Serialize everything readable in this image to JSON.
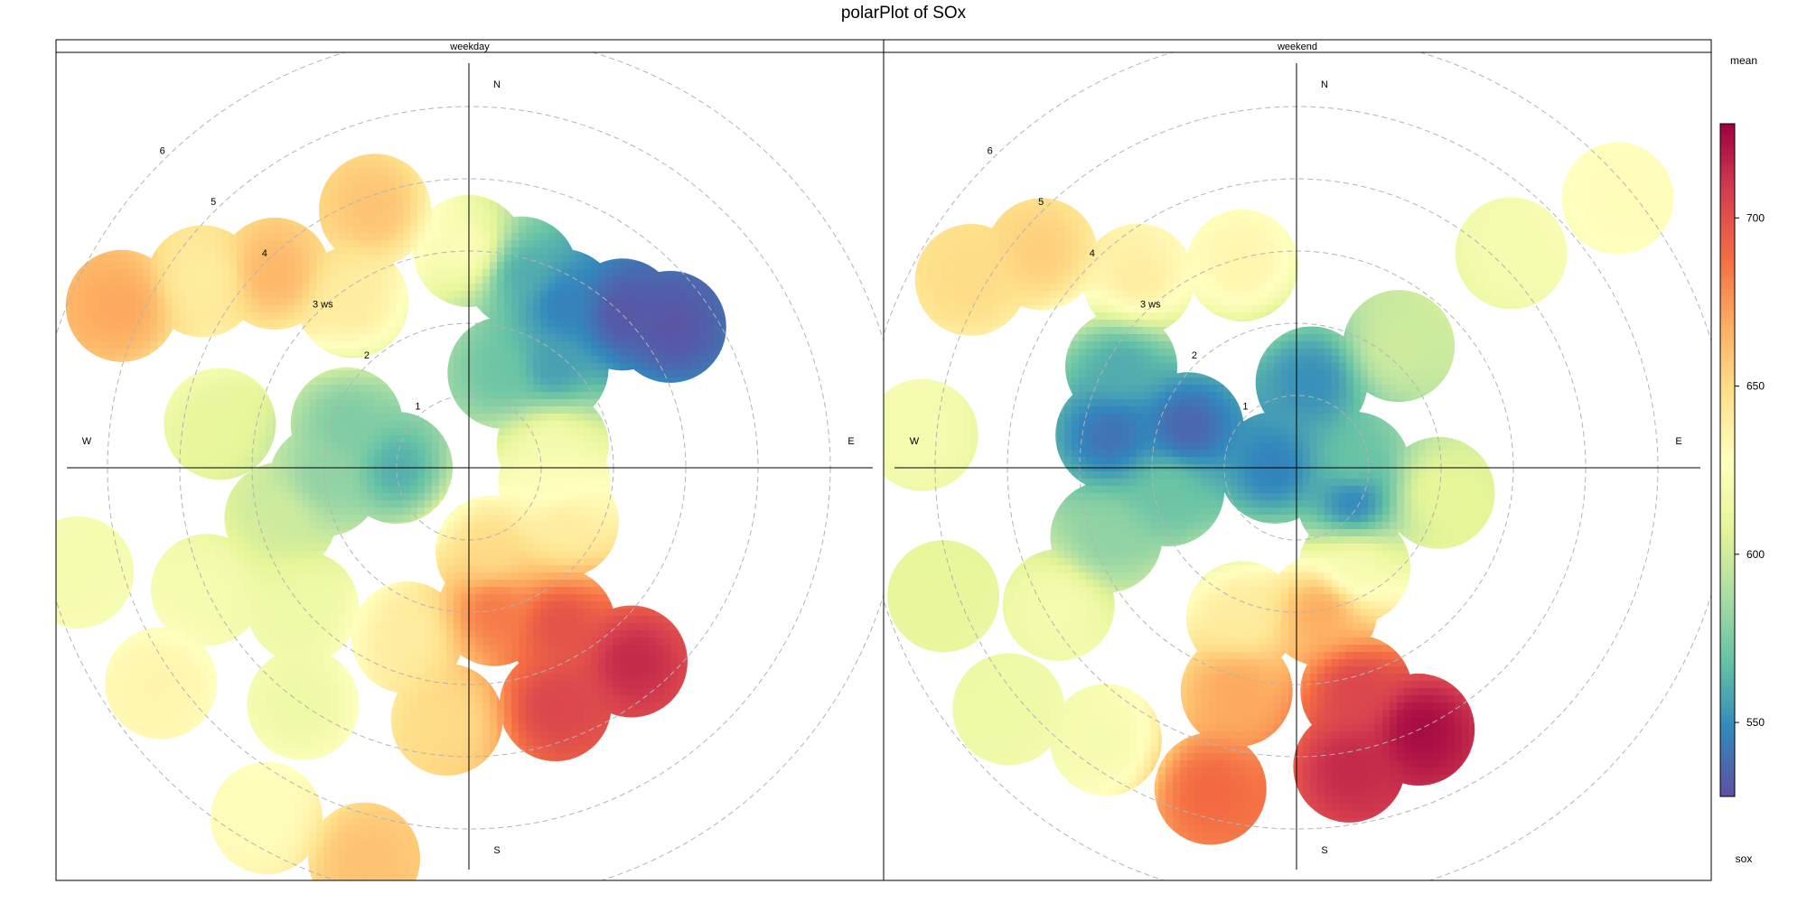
{
  "chart_data": {
    "type": "polar",
    "title": "polarPlot of SOx",
    "panels": [
      {
        "name": "weekday",
        "compass": [
          "N",
          "E",
          "S",
          "W"
        ],
        "ring_labels": [
          "1",
          "2",
          "3 ws",
          "4",
          "5",
          "6"
        ],
        "ring_values": [
          1,
          2,
          3,
          4,
          5,
          6
        ],
        "blobs": [
          {
            "theta": 0,
            "r": 3.0,
            "value": 625
          },
          {
            "theta": 15,
            "r": 2.8,
            "value": 560
          },
          {
            "theta": 30,
            "r": 2.6,
            "value": 545
          },
          {
            "theta": 45,
            "r": 3.0,
            "value": 530
          },
          {
            "theta": 55,
            "r": 3.4,
            "value": 530
          },
          {
            "theta": 40,
            "r": 1.8,
            "value": 555
          },
          {
            "theta": 20,
            "r": 1.4,
            "value": 570
          },
          {
            "theta": 150,
            "r": 2.5,
            "value": 700
          },
          {
            "theta": 160,
            "r": 3.5,
            "value": 705
          },
          {
            "theta": 140,
            "r": 3.5,
            "value": 715
          },
          {
            "theta": 170,
            "r": 2.0,
            "value": 685
          },
          {
            "theta": 165,
            "r": 1.2,
            "value": 650
          },
          {
            "theta": 270,
            "r": 1.0,
            "value": 560
          },
          {
            "theta": 265,
            "r": 2.0,
            "value": 580
          },
          {
            "theta": 255,
            "r": 2.7,
            "value": 600
          },
          {
            "theta": 290,
            "r": 1.8,
            "value": 575
          },
          {
            "theta": 280,
            "r": 3.5,
            "value": 610
          },
          {
            "theta": 295,
            "r": 5.3,
            "value": 670
          },
          {
            "theta": 315,
            "r": 3.8,
            "value": 665
          },
          {
            "theta": 325,
            "r": 2.8,
            "value": 640
          },
          {
            "theta": 340,
            "r": 3.8,
            "value": 660
          },
          {
            "theta": 305,
            "r": 4.5,
            "value": 640
          },
          {
            "theta": 255,
            "r": 5.6,
            "value": 620
          },
          {
            "theta": 235,
            "r": 5.2,
            "value": 635
          },
          {
            "theta": 215,
            "r": 4.0,
            "value": 615
          },
          {
            "theta": 210,
            "r": 5.6,
            "value": 630
          },
          {
            "theta": 195,
            "r": 5.6,
            "value": 660
          },
          {
            "theta": 185,
            "r": 3.5,
            "value": 650
          },
          {
            "theta": 245,
            "r": 4.0,
            "value": 620
          },
          {
            "theta": 230,
            "r": 3.0,
            "value": 615
          },
          {
            "theta": 200,
            "r": 2.5,
            "value": 640
          },
          {
            "theta": 75,
            "r": 1.2,
            "value": 620
          },
          {
            "theta": 100,
            "r": 1.2,
            "value": 625
          },
          {
            "theta": 120,
            "r": 1.5,
            "value": 640
          }
        ]
      },
      {
        "name": "weekend",
        "compass": [
          "N",
          "E",
          "S",
          "W"
        ],
        "ring_labels": [
          "1",
          "2",
          "3 ws",
          "4",
          "5",
          "6"
        ],
        "ring_values": [
          1,
          2,
          3,
          4,
          5,
          6
        ],
        "blobs": [
          {
            "theta": 270,
            "r": 0.3,
            "value": 545
          },
          {
            "theta": 290,
            "r": 1.6,
            "value": 535
          },
          {
            "theta": 280,
            "r": 2.6,
            "value": 540
          },
          {
            "theta": 300,
            "r": 2.8,
            "value": 560
          },
          {
            "theta": 260,
            "r": 1.8,
            "value": 570
          },
          {
            "theta": 250,
            "r": 2.8,
            "value": 580
          },
          {
            "theta": 10,
            "r": 1.2,
            "value": 550
          },
          {
            "theta": 120,
            "r": 0.9,
            "value": 545
          },
          {
            "theta": 90,
            "r": 0.8,
            "value": 570
          },
          {
            "theta": 40,
            "r": 2.2,
            "value": 600
          },
          {
            "theta": 45,
            "r": 4.2,
            "value": 620
          },
          {
            "theta": 50,
            "r": 5.8,
            "value": 630
          },
          {
            "theta": 345,
            "r": 2.9,
            "value": 635
          },
          {
            "theta": 320,
            "r": 3.4,
            "value": 640
          },
          {
            "theta": 310,
            "r": 4.6,
            "value": 655
          },
          {
            "theta": 300,
            "r": 5.2,
            "value": 650
          },
          {
            "theta": 275,
            "r": 5.2,
            "value": 620
          },
          {
            "theta": 250,
            "r": 5.2,
            "value": 610
          },
          {
            "theta": 230,
            "r": 5.2,
            "value": 615
          },
          {
            "theta": 215,
            "r": 4.6,
            "value": 620
          },
          {
            "theta": 195,
            "r": 3.2,
            "value": 670
          },
          {
            "theta": 165,
            "r": 3.2,
            "value": 705
          },
          {
            "theta": 155,
            "r": 4.0,
            "value": 725
          },
          {
            "theta": 170,
            "r": 4.2,
            "value": 715
          },
          {
            "theta": 195,
            "r": 4.6,
            "value": 690
          },
          {
            "theta": 170,
            "r": 2.0,
            "value": 670
          },
          {
            "theta": 200,
            "r": 2.2,
            "value": 640
          },
          {
            "theta": 240,
            "r": 3.8,
            "value": 620
          },
          {
            "theta": 150,
            "r": 1.6,
            "value": 620
          },
          {
            "theta": 100,
            "r": 2.0,
            "value": 610
          }
        ]
      }
    ],
    "colorbar": {
      "title": "mean",
      "variable": "sox",
      "min": 528,
      "max": 728,
      "ticks": [
        550,
        600,
        650,
        700
      ],
      "palette": [
        "#5E4FA2",
        "#3288BD",
        "#66C2A5",
        "#ABDDA4",
        "#E6F598",
        "#FFFFBF",
        "#FEE08B",
        "#FDAE61",
        "#F46D43",
        "#D53E4F",
        "#9E0142"
      ]
    }
  }
}
